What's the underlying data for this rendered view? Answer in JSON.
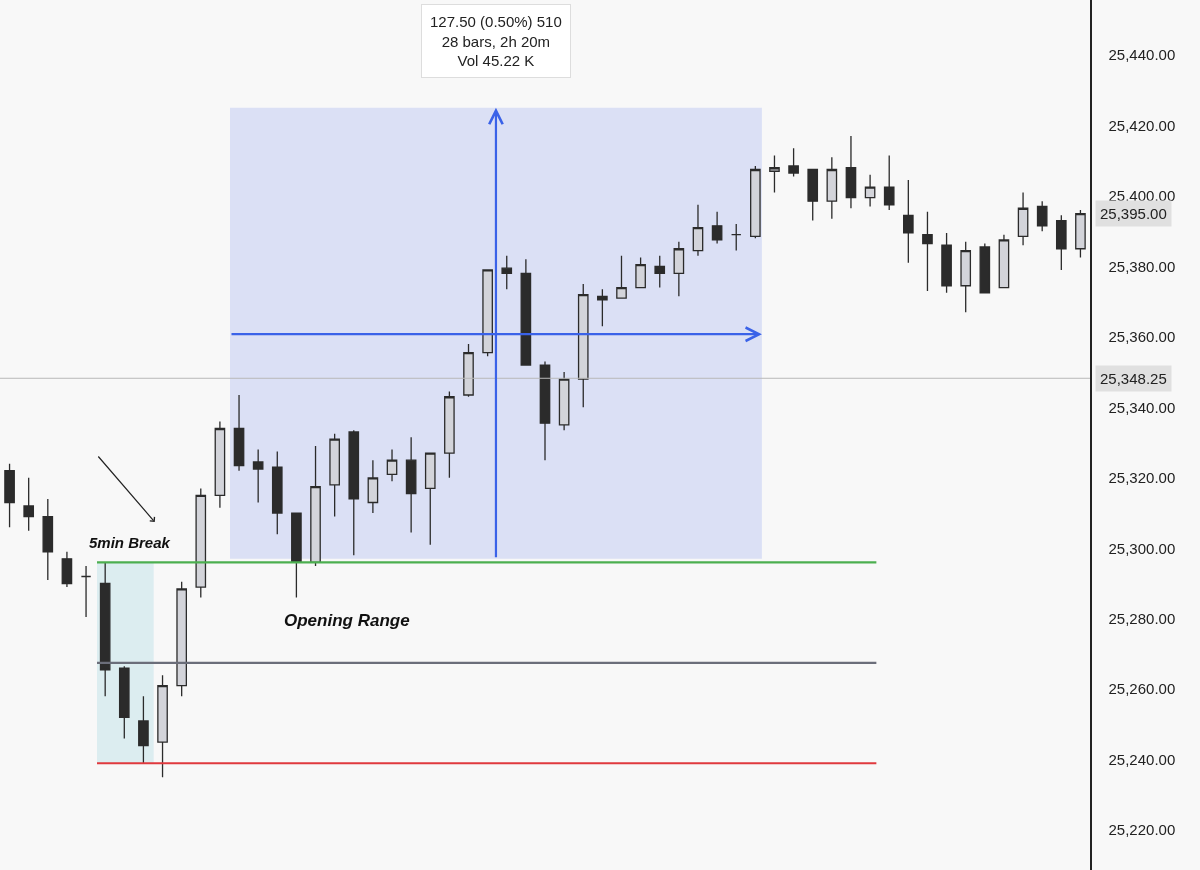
{
  "chart_data": {
    "type": "candlestick",
    "categories": [
      null,
      null,
      null,
      null,
      null,
      null,
      null,
      null,
      null,
      null,
      null,
      null,
      null,
      null,
      null,
      null,
      null,
      null,
      null,
      null,
      null,
      null,
      null,
      null,
      null,
      null,
      null,
      null,
      null,
      null,
      null,
      null,
      null,
      null,
      null,
      null,
      null,
      null,
      null,
      null,
      null,
      null,
      null,
      null,
      null,
      null,
      null,
      null,
      null,
      null,
      null,
      null,
      null,
      null,
      null,
      null,
      null
    ],
    "ohlc": [
      [
        25322,
        25324,
        25306,
        25313
      ],
      [
        25312,
        25320,
        25305,
        25309
      ],
      [
        25309,
        25314,
        25291,
        25299
      ],
      [
        25297,
        25299,
        25289,
        25290
      ],
      [
        25292,
        25295,
        25280.5,
        25292
      ],
      [
        25290,
        25296,
        25258,
        25265.5
      ],
      [
        25266,
        25266.5,
        25246,
        25252
      ],
      [
        25251,
        25258,
        25239,
        25244
      ],
      [
        25245,
        25264,
        25235,
        25261
      ],
      [
        25261,
        25290.5,
        25258,
        25288.5
      ],
      [
        25289,
        25317,
        25286,
        25315
      ],
      [
        25315,
        25336,
        25311.5,
        25334
      ],
      [
        25334,
        25343.5,
        25322,
        25323.5
      ],
      [
        25324.5,
        25328,
        25313,
        25322.5
      ],
      [
        25323,
        25327.5,
        25304,
        25310
      ],
      [
        25310,
        25310,
        25286,
        25296
      ],
      [
        25296,
        25329,
        25295,
        25317.5
      ],
      [
        25318,
        25332.5,
        25309,
        25331
      ],
      [
        25333,
        25333.5,
        25298,
        25314
      ],
      [
        25313,
        25325,
        25310,
        25320
      ],
      [
        25321,
        25328,
        25319,
        25325
      ],
      [
        25325,
        25331.5,
        25304.5,
        25315.5
      ],
      [
        25317,
        25327,
        25301,
        25327
      ],
      [
        25327,
        25344.5,
        25320,
        25343
      ],
      [
        25343.5,
        25358,
        25343,
        25355.5
      ],
      [
        25355.5,
        25379,
        25354.5,
        25379
      ],
      [
        25379.5,
        25383,
        25373.5,
        25378
      ],
      [
        25378,
        25382,
        25352,
        25352
      ],
      [
        25352,
        25353,
        25325,
        25335.5
      ],
      [
        25335,
        25350,
        25333.5,
        25348
      ],
      [
        25348,
        25375,
        25340,
        25372
      ],
      [
        25371.5,
        25373.5,
        25363,
        25370.5
      ],
      [
        25371,
        25383,
        25371,
        25374
      ],
      [
        25374,
        25382.5,
        25374,
        25380.5
      ],
      [
        25380,
        25383,
        25374,
        25378
      ],
      [
        25378,
        25387,
        25371.5,
        25385
      ],
      [
        25384.5,
        25397.5,
        25383,
        25391
      ],
      [
        25391.5,
        25395.5,
        25386.5,
        25387.5
      ],
      [
        25389,
        25392,
        25384.5,
        25389
      ],
      [
        25388.5,
        25408.5,
        25388,
        25407.5
      ],
      [
        25407,
        25411.5,
        25401,
        25408
      ],
      [
        25408.5,
        25413.5,
        25405.5,
        25406.5
      ],
      [
        25407.5,
        25407.5,
        25393,
        25398.5
      ],
      [
        25398.5,
        25411,
        25393.5,
        25407.5
      ],
      [
        25408,
        25417,
        25396.5,
        25399.5
      ],
      [
        25399.5,
        25406,
        25397,
        25402.5
      ],
      [
        25402.5,
        25411.5,
        25396,
        25397.5
      ],
      [
        25394.5,
        25404.5,
        25381,
        25389.5
      ],
      [
        25389,
        25395.5,
        25373,
        25386.5
      ],
      [
        25386,
        25389.5,
        25372.5,
        25374.5
      ],
      [
        25374.5,
        25387,
        25367,
        25384.5
      ],
      [
        25385.5,
        25386.5,
        25372.5,
        25372.5
      ],
      [
        25374,
        25389,
        25374,
        25387.5
      ],
      [
        25388.5,
        25401,
        25386,
        25396.5
      ],
      [
        25397,
        25398.5,
        25390,
        25391.5
      ],
      [
        25393,
        25394.5,
        25379,
        25385
      ],
      [
        25385,
        25396,
        25382.5,
        25395
      ]
    ],
    "ylim": [
      25208.7,
      25455.6
    ],
    "yticks": [
      {
        "value": 25220,
        "label": "25,220.00"
      },
      {
        "value": 25240,
        "label": "25,240.00"
      },
      {
        "value": 25260,
        "label": "25,260.00"
      },
      {
        "value": 25280,
        "label": "25,280.00"
      },
      {
        "value": 25300,
        "label": "25,300.00"
      },
      {
        "value": 25320,
        "label": "25,320.00"
      },
      {
        "value": 25340,
        "label": "25,340.00"
      },
      {
        "value": 25360,
        "label": "25,360.00"
      },
      {
        "value": 25380,
        "label": "25,380.00"
      },
      {
        "value": 25400,
        "label": "25,400.00"
      },
      {
        "value": 25420,
        "label": "25,420.00"
      },
      {
        "value": 25440,
        "label": "25,440.00"
      }
    ],
    "tick_labels": "y",
    "grid": false,
    "ref_lines": [
      {
        "axis": "y",
        "value": 25296,
        "label": null,
        "color": "#4caf50"
      },
      {
        "axis": "y",
        "value": 25267.5,
        "label": null,
        "color": "#6b6e7a"
      },
      {
        "axis": "y",
        "value": 25239,
        "label": null,
        "color": "#e0393e"
      },
      {
        "axis": "y",
        "value": 25348.25,
        "label": "25,348.25",
        "color": "#b8b8b8"
      },
      {
        "axis": "y",
        "value": 25360.75,
        "label": null,
        "color": "#3a62e8"
      }
    ],
    "bands": [
      {
        "axis": "y",
        "from": 25297,
        "to": 25425,
        "label": "127.50 (0.50%) 510\n28 bars, 2h 20m\nVol 45.22 K",
        "color": "#dbe0f5"
      },
      {
        "axis": "y",
        "from": 25239,
        "to": 25296,
        "label": null,
        "color": "#dcedf0"
      }
    ],
    "annotations": [
      "5min Break",
      "Opening Range",
      "25,395.00"
    ]
  }
}
